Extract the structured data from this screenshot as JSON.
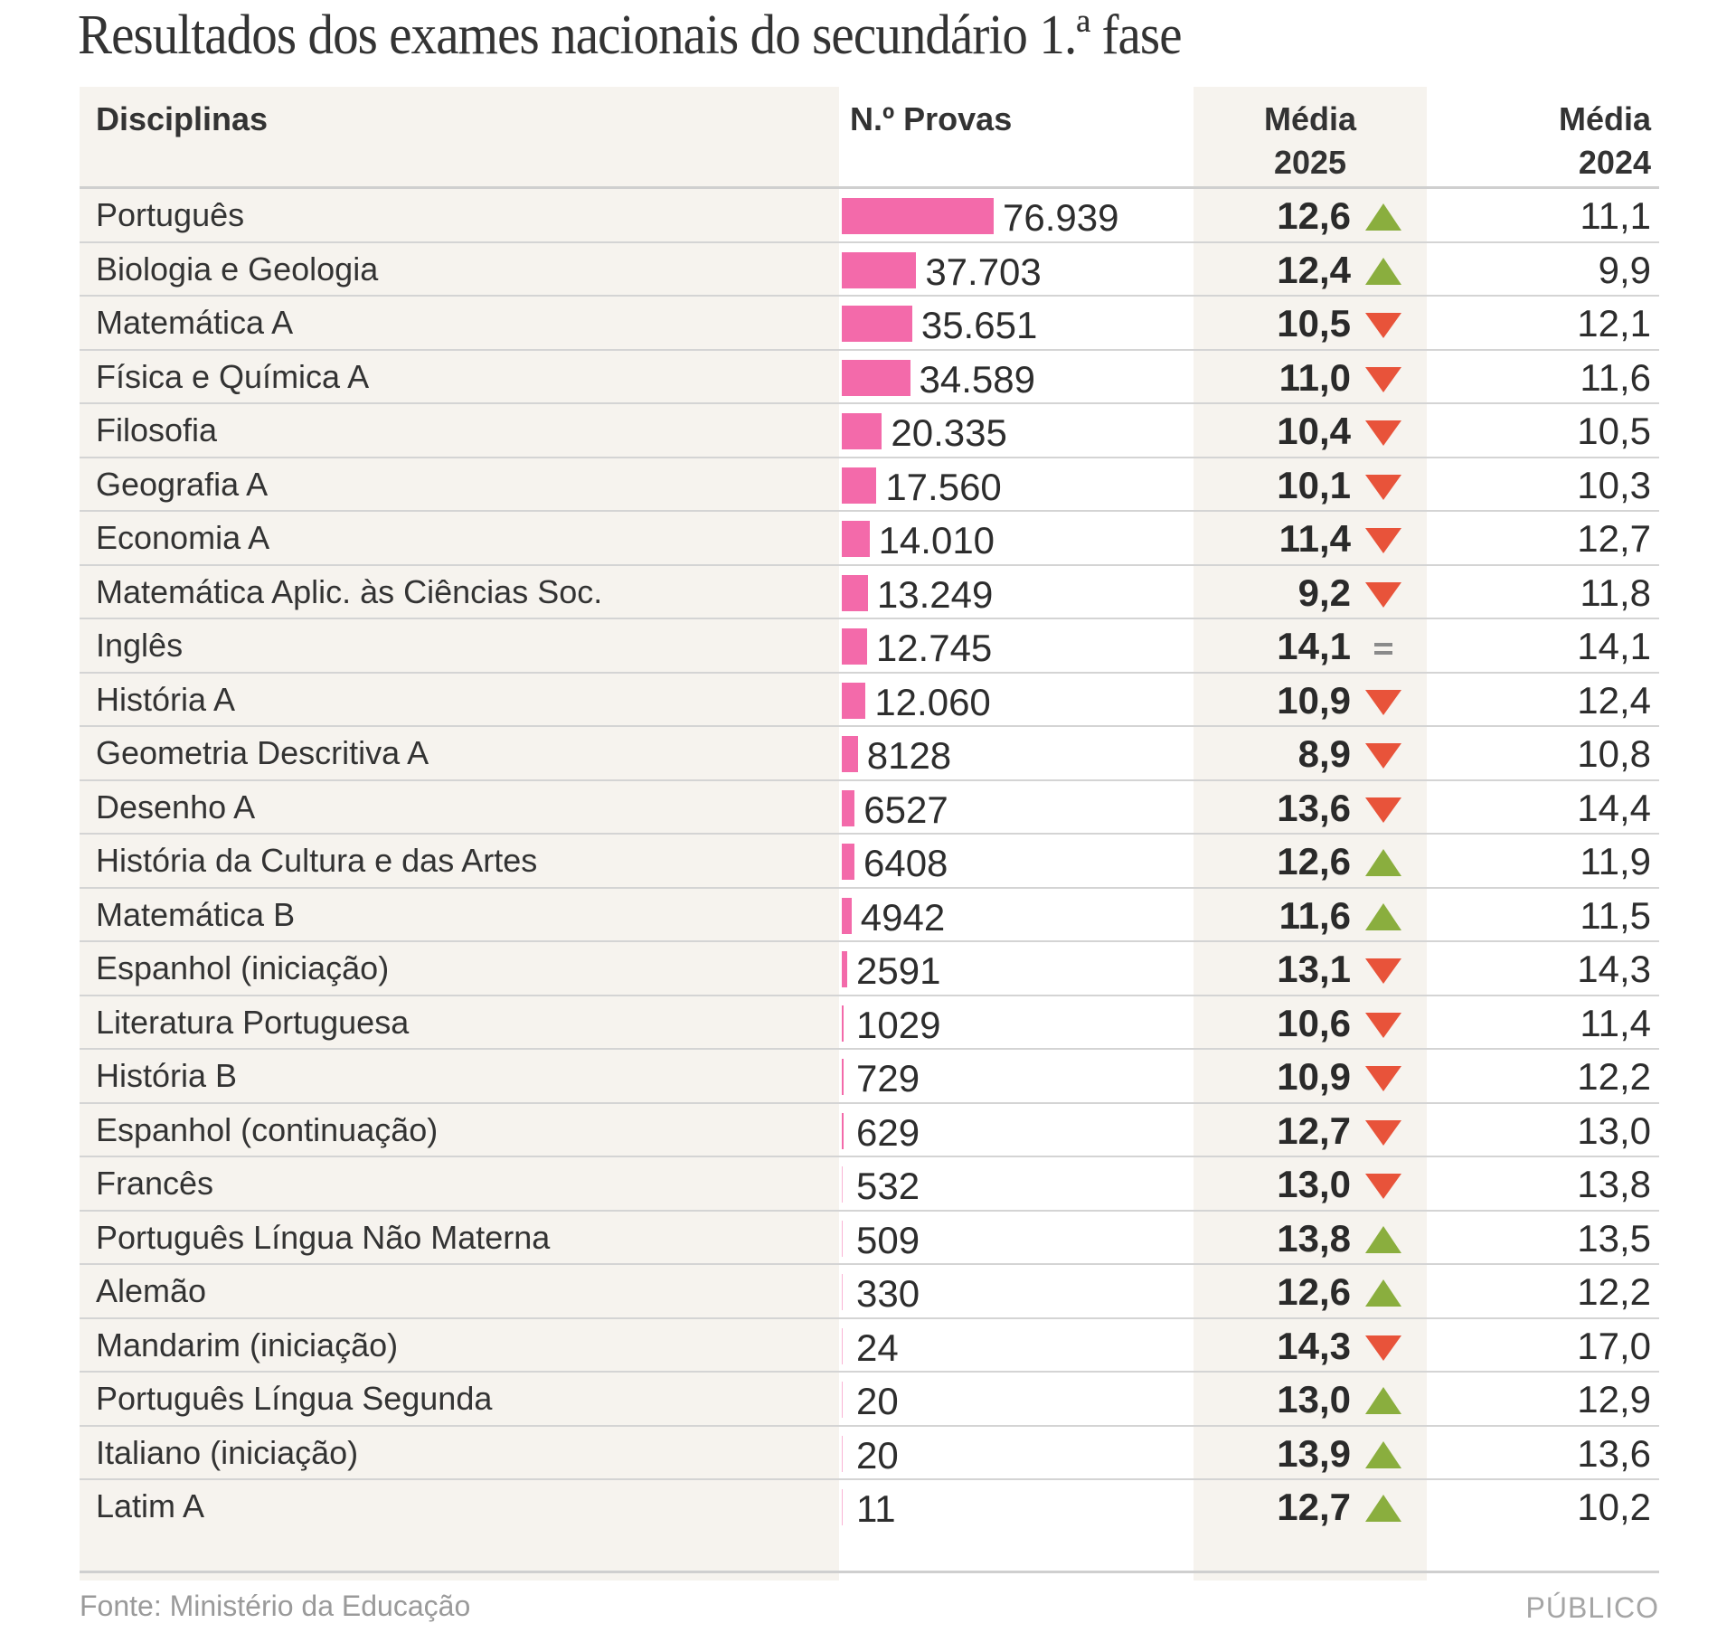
{
  "title": "Resultados dos exames nacionais do secundário 1.ª fase",
  "headers": {
    "disciplinas": "Disciplinas",
    "provas": "N.º Provas",
    "media2025_line1": "Média",
    "media2025_line2": "2025",
    "media2024_line1": "Média",
    "media2024_line2": "2024"
  },
  "colors": {
    "bar": "#f36aaa",
    "up": "#8aae3e",
    "down": "#e8533a",
    "equal": "#8a8a8a",
    "shade": "#f6f3ee"
  },
  "chart_data": {
    "type": "table",
    "title": "Resultados dos exames nacionais do secundário 1.ª fase",
    "columns": [
      "Disciplinas",
      "N.º Provas",
      "Média 2025",
      "Média 2024"
    ],
    "bar_max": 76939,
    "rows": [
      {
        "disciplina": "Português",
        "provas": 76939,
        "provas_label": "76.939",
        "media2025": "12,6",
        "trend": "up",
        "media2024": "11,1"
      },
      {
        "disciplina": "Biologia e Geologia",
        "provas": 37703,
        "provas_label": "37.703",
        "media2025": "12,4",
        "trend": "up",
        "media2024": "9,9"
      },
      {
        "disciplina": "Matemática A",
        "provas": 35651,
        "provas_label": "35.651",
        "media2025": "10,5",
        "trend": "down",
        "media2024": "12,1"
      },
      {
        "disciplina": "Física e Química A",
        "provas": 34589,
        "provas_label": "34.589",
        "media2025": "11,0",
        "trend": "down",
        "media2024": "11,6"
      },
      {
        "disciplina": "Filosofia",
        "provas": 20335,
        "provas_label": "20.335",
        "media2025": "10,4",
        "trend": "down",
        "media2024": "10,5"
      },
      {
        "disciplina": "Geografia A",
        "provas": 17560,
        "provas_label": "17.560",
        "media2025": "10,1",
        "trend": "down",
        "media2024": "10,3"
      },
      {
        "disciplina": "Economia A",
        "provas": 14010,
        "provas_label": "14.010",
        "media2025": "11,4",
        "trend": "down",
        "media2024": "12,7"
      },
      {
        "disciplina": "Matemática Aplic. às Ciências Soc.",
        "provas": 13249,
        "provas_label": "13.249",
        "media2025": "9,2",
        "trend": "down",
        "media2024": "11,8"
      },
      {
        "disciplina": "Inglês",
        "provas": 12745,
        "provas_label": "12.745",
        "media2025": "14,1",
        "trend": "equal",
        "media2024": "14,1"
      },
      {
        "disciplina": "História A",
        "provas": 12060,
        "provas_label": "12.060",
        "media2025": "10,9",
        "trend": "down",
        "media2024": "12,4"
      },
      {
        "disciplina": "Geometria Descritiva A",
        "provas": 8128,
        "provas_label": "8128",
        "media2025": "8,9",
        "trend": "down",
        "media2024": "10,8"
      },
      {
        "disciplina": "Desenho A",
        "provas": 6527,
        "provas_label": "6527",
        "media2025": "13,6",
        "trend": "down",
        "media2024": "14,4"
      },
      {
        "disciplina": "História da Cultura e das Artes",
        "provas": 6408,
        "provas_label": "6408",
        "media2025": "12,6",
        "trend": "up",
        "media2024": "11,9"
      },
      {
        "disciplina": "Matemática B",
        "provas": 4942,
        "provas_label": "4942",
        "media2025": "11,6",
        "trend": "up",
        "media2024": "11,5"
      },
      {
        "disciplina": "Espanhol (iniciação)",
        "provas": 2591,
        "provas_label": "2591",
        "media2025": "13,1",
        "trend": "down",
        "media2024": "14,3"
      },
      {
        "disciplina": "Literatura Portuguesa",
        "provas": 1029,
        "provas_label": "1029",
        "media2025": "10,6",
        "trend": "down",
        "media2024": "11,4"
      },
      {
        "disciplina": "História B",
        "provas": 729,
        "provas_label": "729",
        "media2025": "10,9",
        "trend": "down",
        "media2024": "12,2"
      },
      {
        "disciplina": "Espanhol (continuação)",
        "provas": 629,
        "provas_label": "629",
        "media2025": "12,7",
        "trend": "down",
        "media2024": "13,0"
      },
      {
        "disciplina": "Francês",
        "provas": 532,
        "provas_label": "532",
        "media2025": "13,0",
        "trend": "down",
        "media2024": "13,8"
      },
      {
        "disciplina": "Português Língua Não Materna",
        "provas": 509,
        "provas_label": "509",
        "media2025": "13,8",
        "trend": "up",
        "media2024": "13,5"
      },
      {
        "disciplina": "Alemão",
        "provas": 330,
        "provas_label": "330",
        "media2025": "12,6",
        "trend": "up",
        "media2024": "12,2"
      },
      {
        "disciplina": "Mandarim (iniciação)",
        "provas": 24,
        "provas_label": "24",
        "media2025": "14,3",
        "trend": "down",
        "media2024": "17,0"
      },
      {
        "disciplina": "Português Língua Segunda",
        "provas": 20,
        "provas_label": "20",
        "media2025": "13,0",
        "trend": "up",
        "media2024": "12,9"
      },
      {
        "disciplina": "Italiano (iniciação)",
        "provas": 20,
        "provas_label": "20",
        "media2025": "13,9",
        "trend": "up",
        "media2024": "13,6"
      },
      {
        "disciplina": "Latim A",
        "provas": 11,
        "provas_label": "11",
        "media2025": "12,7",
        "trend": "up",
        "media2024": "10,2"
      }
    ]
  },
  "footer": {
    "source": "Fonte: Ministério da Educação",
    "brand": "PÚBLICO"
  }
}
